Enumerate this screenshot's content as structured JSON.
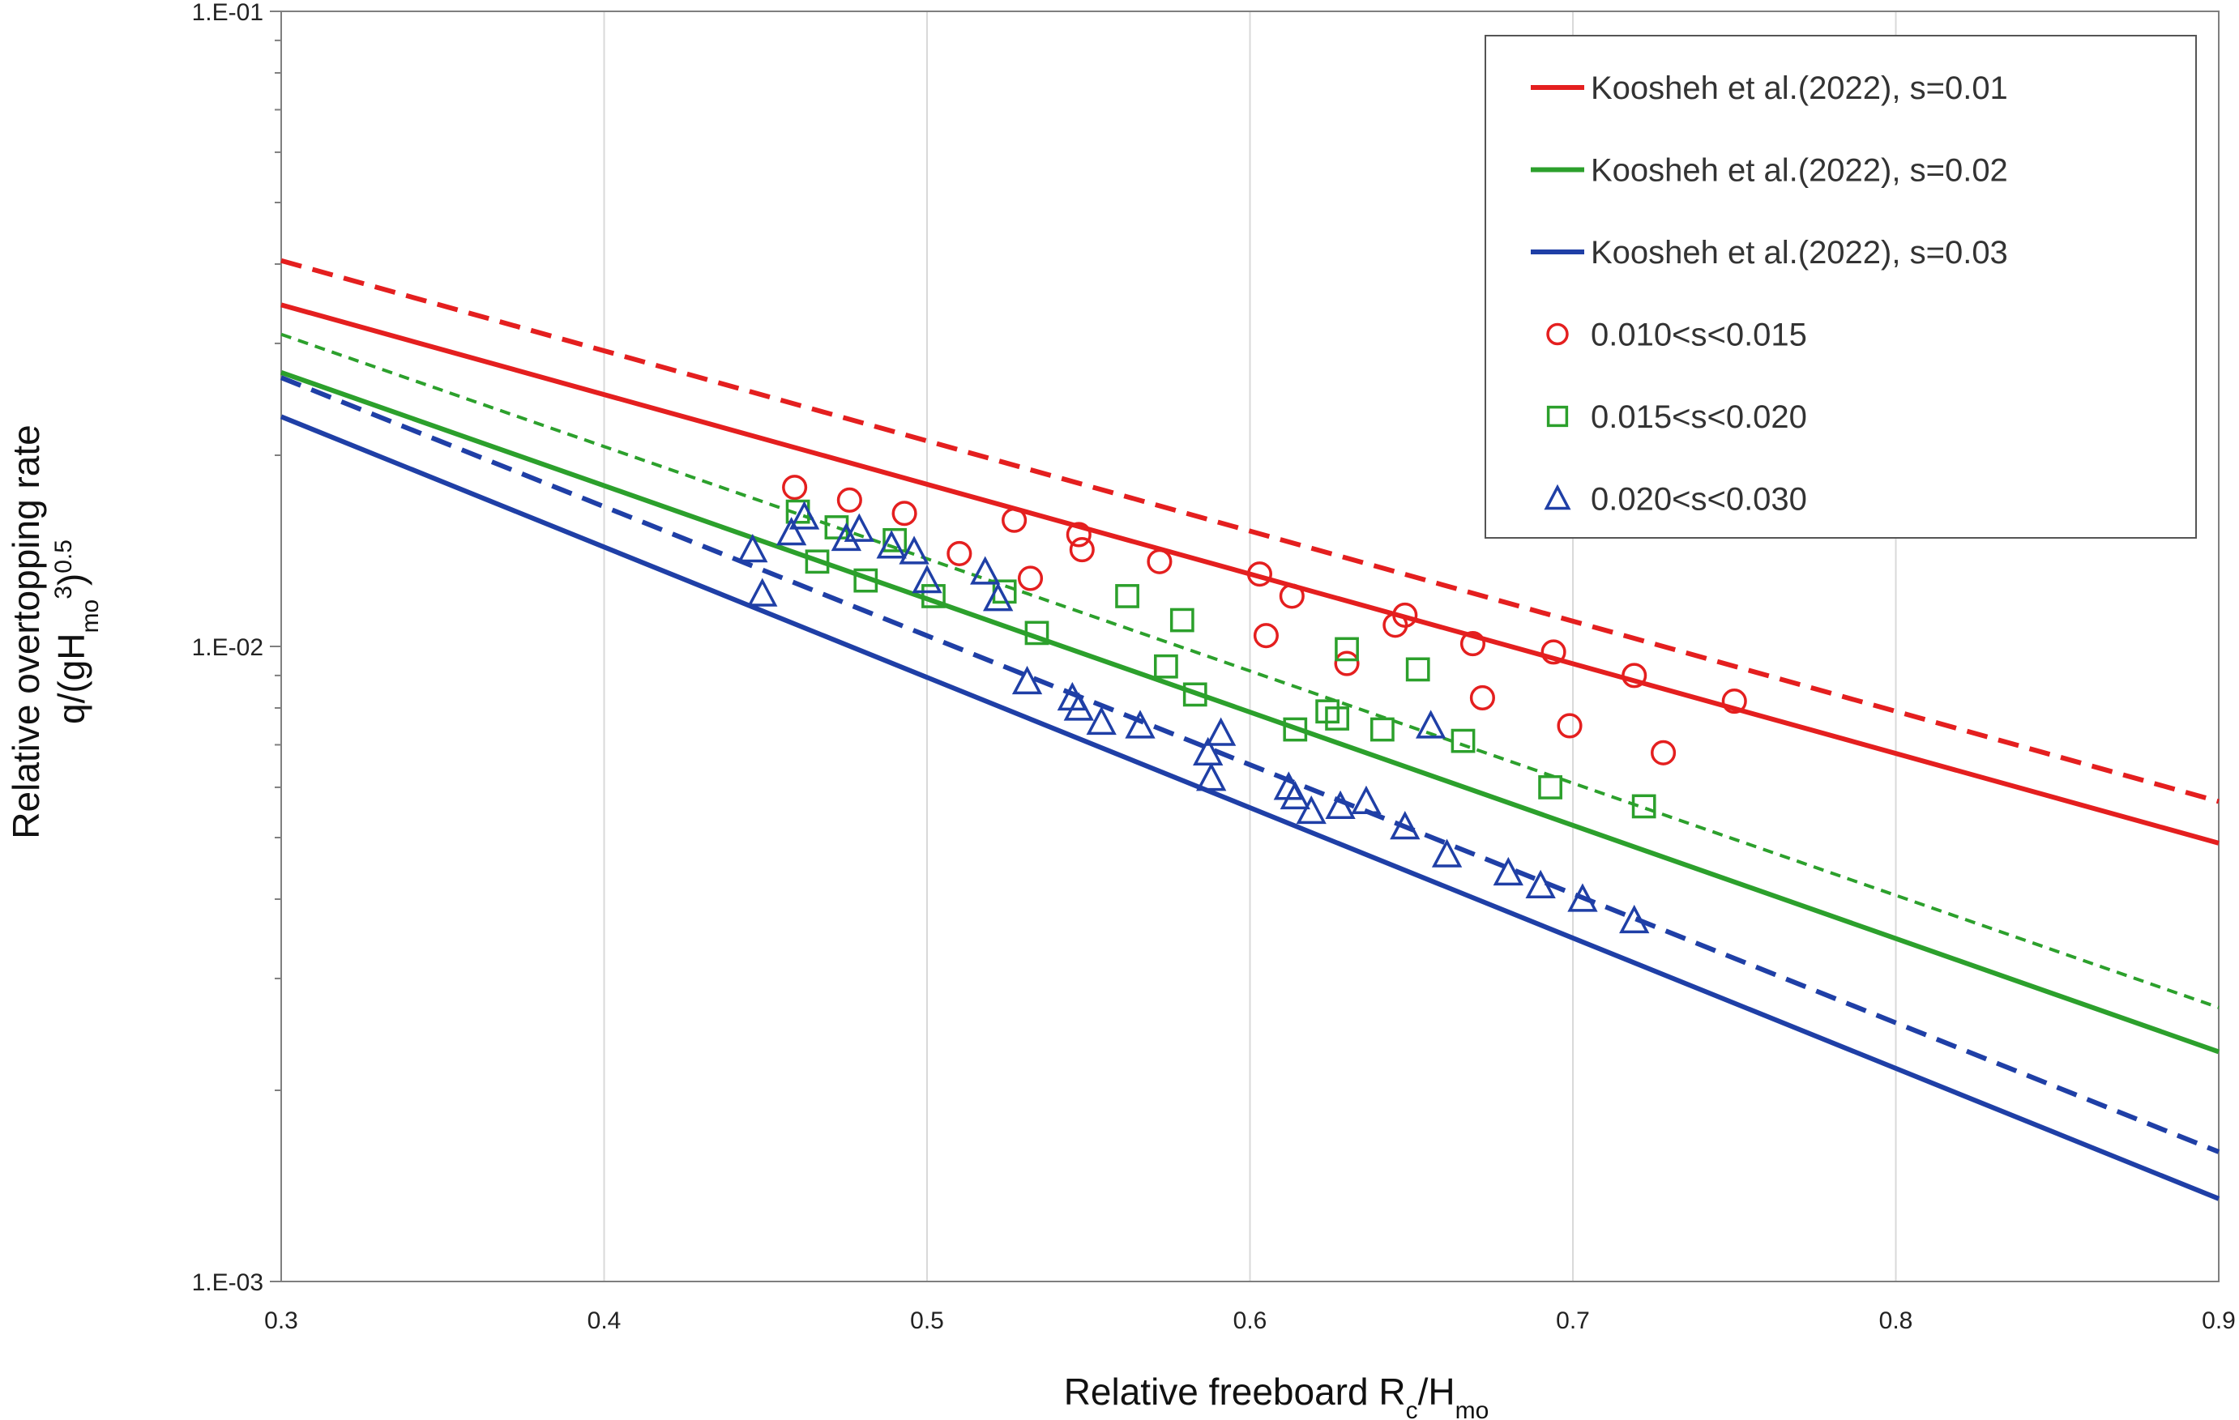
{
  "chart_data": {
    "type": "scatter",
    "title": "",
    "xlabel": {
      "main": "Relative freeboard R",
      "sub1": "c",
      "mid": "/H",
      "sub2": "mo"
    },
    "ylabel": {
      "line1": "Relative overtopping rate",
      "line2": {
        "a": "q/(gH",
        "sub": "mo",
        "sup1": "3",
        "b": ")",
        "sup2": "0.5"
      }
    },
    "x_scale": "linear",
    "y_scale": "log",
    "xlim": [
      0.3,
      0.9
    ],
    "ylim": [
      0.001,
      0.1
    ],
    "grid": {
      "vertical": true,
      "horizontal": false
    },
    "x_ticks": [
      {
        "value": 0.3,
        "label": "0.3"
      },
      {
        "value": 0.4,
        "label": "0.4"
      },
      {
        "value": 0.5,
        "label": "0.5"
      },
      {
        "value": 0.6,
        "label": "0.6"
      },
      {
        "value": 0.7,
        "label": "0.7"
      },
      {
        "value": 0.8,
        "label": "0.8"
      },
      {
        "value": 0.9,
        "label": "0.9"
      }
    ],
    "y_ticks": [
      {
        "value": 0.001,
        "label": "1.E-03"
      },
      {
        "value": 0.01,
        "label": "1.E-02"
      },
      {
        "value": 0.1,
        "label": "1.E-01"
      }
    ],
    "legend_position": "top-right",
    "series": [
      {
        "name": "Koosheh et al.(2022), s=0.01",
        "kind": "line",
        "color": "#e41f1f",
        "style": "solid",
        "in_legend": true,
        "x": [
          0.3,
          0.9
        ],
        "y": [
          0.0345,
          0.0049
        ]
      },
      {
        "name": "Koosheh et al.(2022), s=0.02",
        "kind": "line",
        "color": "#2ca02c",
        "style": "solid",
        "in_legend": true,
        "x": [
          0.3,
          0.9
        ],
        "y": [
          0.027,
          0.0023
        ]
      },
      {
        "name": "Koosheh et al.(2022), s=0.03",
        "kind": "line",
        "color": "#1f3fa6",
        "style": "solid",
        "in_legend": true,
        "x": [
          0.3,
          0.9
        ],
        "y": [
          0.023,
          0.00135
        ]
      },
      {
        "kind": "line",
        "color": "#e41f1f",
        "style": "dashed",
        "in_legend": false,
        "x": [
          0.3,
          0.9
        ],
        "y": [
          0.0405,
          0.0057
        ]
      },
      {
        "kind": "line",
        "color": "#2ca02c",
        "style": "dashed-thin",
        "in_legend": false,
        "x": [
          0.3,
          0.9
        ],
        "y": [
          0.031,
          0.0027
        ]
      },
      {
        "kind": "line",
        "color": "#1f3fa6",
        "style": "dashed",
        "in_legend": false,
        "x": [
          0.3,
          0.9
        ],
        "y": [
          0.0265,
          0.0016
        ]
      },
      {
        "name": "0.010<s<0.015",
        "kind": "points",
        "marker": "circle",
        "color": "#e41f1f",
        "in_legend": true,
        "x": [
          0.459,
          0.476,
          0.493,
          0.51,
          0.527,
          0.532,
          0.547,
          0.548,
          0.572,
          0.603,
          0.605,
          0.613,
          0.63,
          0.645,
          0.648,
          0.669,
          0.672,
          0.694,
          0.699,
          0.719,
          0.728,
          0.75
        ],
        "y": [
          0.0178,
          0.017,
          0.0162,
          0.014,
          0.0158,
          0.0128,
          0.015,
          0.0142,
          0.0136,
          0.013,
          0.0104,
          0.012,
          0.0094,
          0.0108,
          0.0112,
          0.0101,
          0.0083,
          0.0098,
          0.0075,
          0.009,
          0.0068,
          0.0082
        ]
      },
      {
        "name": "0.015<s<0.020",
        "kind": "points",
        "marker": "square",
        "color": "#2ca02c",
        "in_legend": true,
        "x": [
          0.46,
          0.466,
          0.472,
          0.481,
          0.49,
          0.502,
          0.524,
          0.534,
          0.562,
          0.574,
          0.579,
          0.583,
          0.614,
          0.624,
          0.627,
          0.63,
          0.641,
          0.652,
          0.666,
          0.693,
          0.722
        ],
        "y": [
          0.0163,
          0.0136,
          0.0154,
          0.0127,
          0.0147,
          0.012,
          0.0122,
          0.0105,
          0.012,
          0.0093,
          0.011,
          0.0084,
          0.0074,
          0.0079,
          0.0077,
          0.0099,
          0.0074,
          0.0092,
          0.0071,
          0.006,
          0.0056
        ]
      },
      {
        "name": "0.020<s<0.030",
        "kind": "points",
        "marker": "triangle",
        "color": "#1f3fa6",
        "in_legend": true,
        "x": [
          0.446,
          0.449,
          0.458,
          0.462,
          0.475,
          0.479,
          0.489,
          0.496,
          0.5,
          0.518,
          0.522,
          0.531,
          0.545,
          0.547,
          0.554,
          0.566,
          0.587,
          0.588,
          0.591,
          0.612,
          0.614,
          0.619,
          0.628,
          0.636,
          0.648,
          0.656,
          0.661,
          0.68,
          0.69,
          0.703,
          0.719
        ],
        "y": [
          0.0142,
          0.0121,
          0.0151,
          0.016,
          0.0148,
          0.0153,
          0.0144,
          0.0141,
          0.0127,
          0.0131,
          0.0119,
          0.0088,
          0.0083,
          0.008,
          0.0076,
          0.0075,
          0.0068,
          0.0062,
          0.0073,
          0.006,
          0.0058,
          0.0055,
          0.0056,
          0.0057,
          0.0052,
          0.0075,
          0.0047,
          0.0044,
          0.0042,
          0.004,
          0.0037
        ]
      }
    ]
  }
}
